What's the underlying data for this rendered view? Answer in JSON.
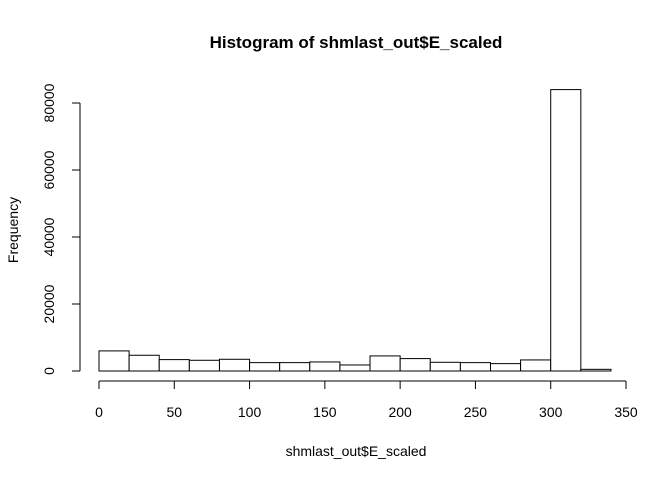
{
  "chart_data": {
    "type": "histogram",
    "title": "Histogram of shmlast_out$E_scaled",
    "xlabel": "shmlast_out$E_scaled",
    "ylabel": "Frequency",
    "xlim": [
      0,
      350
    ],
    "ylim": [
      0,
      80000
    ],
    "bins": [
      {
        "x0": 0,
        "x1": 20,
        "count": 6000
      },
      {
        "x0": 20,
        "x1": 40,
        "count": 4700
      },
      {
        "x0": 40,
        "x1": 60,
        "count": 3400
      },
      {
        "x0": 60,
        "x1": 80,
        "count": 3200
      },
      {
        "x0": 80,
        "x1": 100,
        "count": 3500
      },
      {
        "x0": 100,
        "x1": 120,
        "count": 2500
      },
      {
        "x0": 120,
        "x1": 140,
        "count": 2500
      },
      {
        "x0": 140,
        "x1": 160,
        "count": 2700
      },
      {
        "x0": 160,
        "x1": 180,
        "count": 1800
      },
      {
        "x0": 180,
        "x1": 200,
        "count": 4500
      },
      {
        "x0": 200,
        "x1": 220,
        "count": 3700
      },
      {
        "x0": 220,
        "x1": 240,
        "count": 2600
      },
      {
        "x0": 240,
        "x1": 260,
        "count": 2500
      },
      {
        "x0": 260,
        "x1": 280,
        "count": 2200
      },
      {
        "x0": 280,
        "x1": 300,
        "count": 3300
      },
      {
        "x0": 300,
        "x1": 320,
        "count": 84000
      },
      {
        "x0": 320,
        "x1": 340,
        "count": 500
      }
    ],
    "x_ticks": [
      0,
      50,
      100,
      150,
      200,
      250,
      300,
      350
    ],
    "y_ticks": [
      0,
      20000,
      40000,
      60000,
      80000
    ],
    "grid": false,
    "colors": {
      "bar_fill": "#ffffff",
      "bar_stroke": "#000000"
    }
  }
}
